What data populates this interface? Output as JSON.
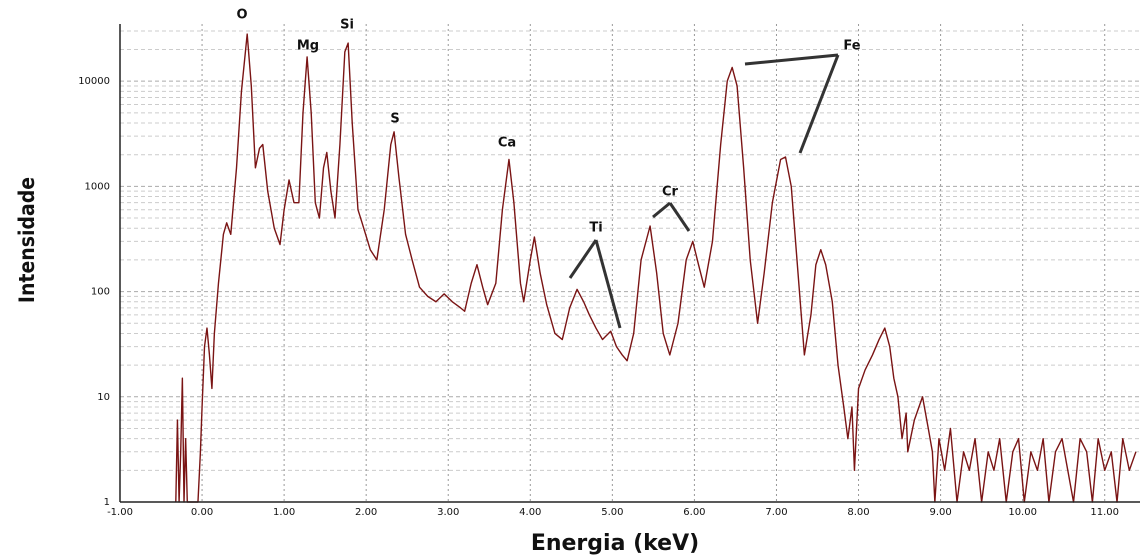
{
  "chart_data": {
    "type": "line",
    "xlabel": "Energia (keV)",
    "ylabel": "Intensidade",
    "log_y": true,
    "grid": true,
    "xlim": [
      -1,
      11.43
    ],
    "ylim": [
      1,
      32000
    ],
    "xticks": [
      {
        "value": -1,
        "label": "-1.00"
      },
      {
        "value": 0,
        "label": "0.00"
      },
      {
        "value": 1,
        "label": "1.00"
      },
      {
        "value": 2,
        "label": "2.00"
      },
      {
        "value": 3,
        "label": "3.00"
      },
      {
        "value": 4,
        "label": "4.00"
      },
      {
        "value": 5,
        "label": "5.00"
      },
      {
        "value": 6,
        "label": "6.00"
      },
      {
        "value": 7,
        "label": "7.00"
      },
      {
        "value": 8,
        "label": "8.00"
      },
      {
        "value": 9,
        "label": "9.00"
      },
      {
        "value": 10,
        "label": "10.00"
      },
      {
        "value": 11,
        "label": "11.00"
      }
    ],
    "yticks": [
      1,
      10,
      100,
      1000,
      10000
    ],
    "annotations": [
      {
        "text": "O"
      },
      {
        "text": "Mg"
      },
      {
        "text": "Si"
      },
      {
        "text": "S"
      },
      {
        "text": "Ca"
      },
      {
        "text": "Ti"
      },
      {
        "text": "Cr"
      },
      {
        "text": "Fe"
      }
    ],
    "x": [
      -0.32,
      -0.3,
      -0.28,
      -0.26,
      -0.24,
      -0.22,
      -0.2,
      -0.18,
      -0.16,
      -0.05,
      -0.02,
      0.0,
      0.03,
      0.06,
      0.09,
      0.12,
      0.15,
      0.2,
      0.26,
      0.3,
      0.35,
      0.42,
      0.48,
      0.55,
      0.6,
      0.65,
      0.7,
      0.74,
      0.8,
      0.88,
      0.95,
      1.0,
      1.06,
      1.12,
      1.18,
      1.23,
      1.28,
      1.33,
      1.38,
      1.43,
      1.48,
      1.52,
      1.57,
      1.62,
      1.68,
      1.74,
      1.78,
      1.83,
      1.9,
      1.95,
      2.05,
      2.13,
      2.22,
      2.3,
      2.34,
      2.4,
      2.48,
      2.56,
      2.65,
      2.75,
      2.85,
      2.95,
      3.05,
      3.15,
      3.2,
      3.28,
      3.35,
      3.42,
      3.48,
      3.58,
      3.66,
      3.74,
      3.8,
      3.88,
      3.92,
      4.0,
      4.05,
      4.12,
      4.2,
      4.3,
      4.39,
      4.48,
      4.57,
      4.65,
      4.72,
      4.8,
      4.88,
      4.98,
      5.05,
      5.12,
      5.18,
      5.26,
      5.35,
      5.46,
      5.54,
      5.62,
      5.7,
      5.8,
      5.9,
      5.98,
      6.05,
      6.12,
      6.22,
      6.32,
      6.4,
      6.46,
      6.52,
      6.6,
      6.68,
      6.77,
      6.85,
      6.95,
      7.05,
      7.11,
      7.18,
      7.25,
      7.34,
      7.42,
      7.48,
      7.54,
      7.6,
      7.68,
      7.75,
      7.82,
      7.87,
      7.92,
      7.95,
      8.0,
      8.08,
      8.17,
      8.25,
      8.32,
      8.38,
      8.43,
      8.48,
      8.53,
      8.58,
      8.6,
      8.68,
      8.78,
      8.85,
      8.9,
      8.93,
      8.98,
      9.05,
      9.12,
      9.2,
      9.28,
      9.35,
      9.42,
      9.5,
      9.58,
      9.65,
      9.72,
      9.8,
      9.88,
      9.95,
      10.02,
      10.1,
      10.18,
      10.25,
      10.32,
      10.4,
      10.48,
      10.55,
      10.62,
      10.7,
      10.78,
      10.85,
      10.92,
      11.0,
      11.08,
      11.15,
      11.22,
      11.3,
      11.38
    ],
    "series": [
      {
        "color": "#7a1414",
        "values": [
          1,
          6,
          1,
          3,
          15,
          1,
          4,
          1,
          1,
          1,
          3,
          8,
          30,
          45,
          25,
          12,
          40,
          120,
          350,
          450,
          350,
          1500,
          8000,
          28000,
          9000,
          1500,
          2300,
          2500,
          900,
          400,
          280,
          600,
          1150,
          700,
          700,
          5000,
          17000,
          5000,
          700,
          500,
          1500,
          2100,
          900,
          500,
          2500,
          19000,
          23000,
          4000,
          600,
          450,
          250,
          200,
          600,
          2500,
          3300,
          1200,
          350,
          200,
          110,
          90,
          80,
          95,
          80,
          70,
          65,
          120,
          180,
          110,
          75,
          120,
          600,
          1800,
          700,
          120,
          80,
          200,
          330,
          150,
          75,
          40,
          35,
          70,
          105,
          80,
          60,
          45,
          35,
          42,
          30,
          25,
          22,
          40,
          200,
          420,
          150,
          40,
          25,
          50,
          200,
          300,
          180,
          110,
          300,
          2500,
          10000,
          13500,
          9000,
          1500,
          200,
          50,
          150,
          700,
          1800,
          1900,
          1000,
          200,
          25,
          60,
          180,
          250,
          180,
          80,
          20,
          8,
          4,
          8,
          2,
          12,
          18,
          25,
          35,
          45,
          30,
          15,
          10,
          4,
          7,
          3,
          6,
          10,
          5,
          3,
          1,
          4,
          2,
          5,
          1,
          3,
          2,
          4,
          1,
          3,
          2,
          4,
          1,
          3,
          4,
          1,
          3,
          2,
          4,
          1,
          3,
          4,
          2,
          1,
          4,
          3,
          1,
          4,
          2,
          3,
          1,
          4,
          2,
          3
        ]
      }
    ]
  }
}
